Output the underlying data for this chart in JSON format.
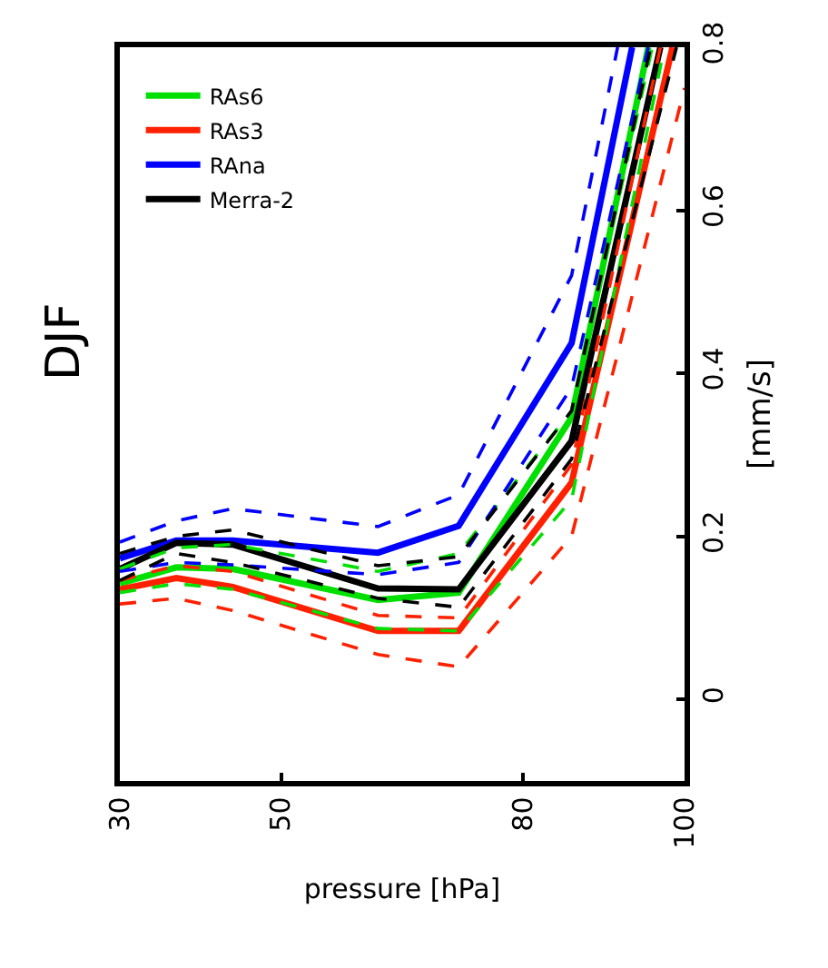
{
  "chart_data": {
    "type": "line",
    "title": "DJF",
    "xlabel": "pressure [hPa]",
    "ylabel": "[mm/s]",
    "xlim": [
      30,
      100
    ],
    "xticks": [
      30,
      50,
      80,
      100
    ],
    "ylim": [
      -0.1,
      0.8
    ],
    "yticks": [
      0,
      0.2,
      0.4,
      0.6,
      0.8
    ],
    "grid": false,
    "legend": "top left",
    "line_style": "solid",
    "series": [
      {
        "name": "RAs6",
        "color": "#00e000",
        "x": [
          30,
          37,
          44,
          62,
          72,
          86,
          95.5
        ],
        "values": [
          0.142,
          0.162,
          0.16,
          0.122,
          0.131,
          0.346,
          0.8
        ]
      },
      {
        "name": "RAs3",
        "color": "#ff2000",
        "x": [
          30,
          37,
          44,
          62,
          72,
          86,
          98.5
        ],
        "values": [
          0.135,
          0.149,
          0.138,
          0.084,
          0.084,
          0.266,
          0.8
        ]
      },
      {
        "name": "RAna",
        "color": "#0000ff",
        "x": [
          30,
          37,
          44,
          62,
          72,
          86,
          93.5
        ],
        "values": [
          0.173,
          0.195,
          0.195,
          0.18,
          0.213,
          0.437,
          0.8
        ]
      },
      {
        "name": "Merra-2",
        "color": "#000000",
        "x": [
          30,
          37,
          44,
          62,
          72,
          86,
          97
        ],
        "values": [
          0.16,
          0.192,
          0.19,
          0.136,
          0.135,
          0.317,
          0.8
        ]
      },
      {
        "color": "#00e000",
        "line_style": "dashed",
        "x": [
          30,
          37,
          44,
          62,
          72,
          86,
          96
        ],
        "values": [
          0.16,
          0.186,
          0.19,
          0.157,
          0.179,
          0.354,
          0.8
        ]
      },
      {
        "color": "#00e000",
        "line_style": "dashed",
        "x": [
          30,
          37,
          44,
          62,
          72,
          86,
          97.5
        ],
        "values": [
          0.131,
          0.142,
          0.135,
          0.087,
          0.084,
          0.245,
          0.8
        ]
      },
      {
        "color": "#ff2000",
        "line_style": "dashed",
        "x": [
          30,
          37,
          44,
          62,
          72,
          86,
          97
        ],
        "values": [
          0.146,
          0.164,
          0.157,
          0.103,
          0.1,
          0.288,
          0.8
        ]
      },
      {
        "color": "#ff2000",
        "line_style": "dashed",
        "x": [
          30,
          37,
          44,
          62,
          72,
          86,
          100
        ],
        "values": [
          0.117,
          0.124,
          0.109,
          0.055,
          0.04,
          0.2,
          0.75
        ]
      },
      {
        "color": "#0000ff",
        "line_style": "dashed",
        "x": [
          30,
          37,
          44,
          62,
          72,
          86,
          91.7
        ],
        "values": [
          0.193,
          0.219,
          0.234,
          0.212,
          0.251,
          0.52,
          0.8
        ]
      },
      {
        "color": "#0000ff",
        "line_style": "dashed",
        "x": [
          30,
          37,
          44,
          62,
          72,
          86,
          95.5
        ],
        "values": [
          0.157,
          0.168,
          0.165,
          0.153,
          0.168,
          0.383,
          0.8
        ]
      },
      {
        "color": "#000000",
        "line_style": "dashed",
        "x": [
          30,
          37,
          44,
          62,
          72,
          86,
          95.8
        ],
        "values": [
          0.179,
          0.2,
          0.208,
          0.164,
          0.175,
          0.354,
          0.8
        ]
      },
      {
        "color": "#000000",
        "line_style": "dashed",
        "x": [
          30,
          37,
          44,
          62,
          72,
          86,
          99
        ],
        "values": [
          0.146,
          0.179,
          0.168,
          0.124,
          0.113,
          0.295,
          0.8
        ]
      }
    ]
  }
}
